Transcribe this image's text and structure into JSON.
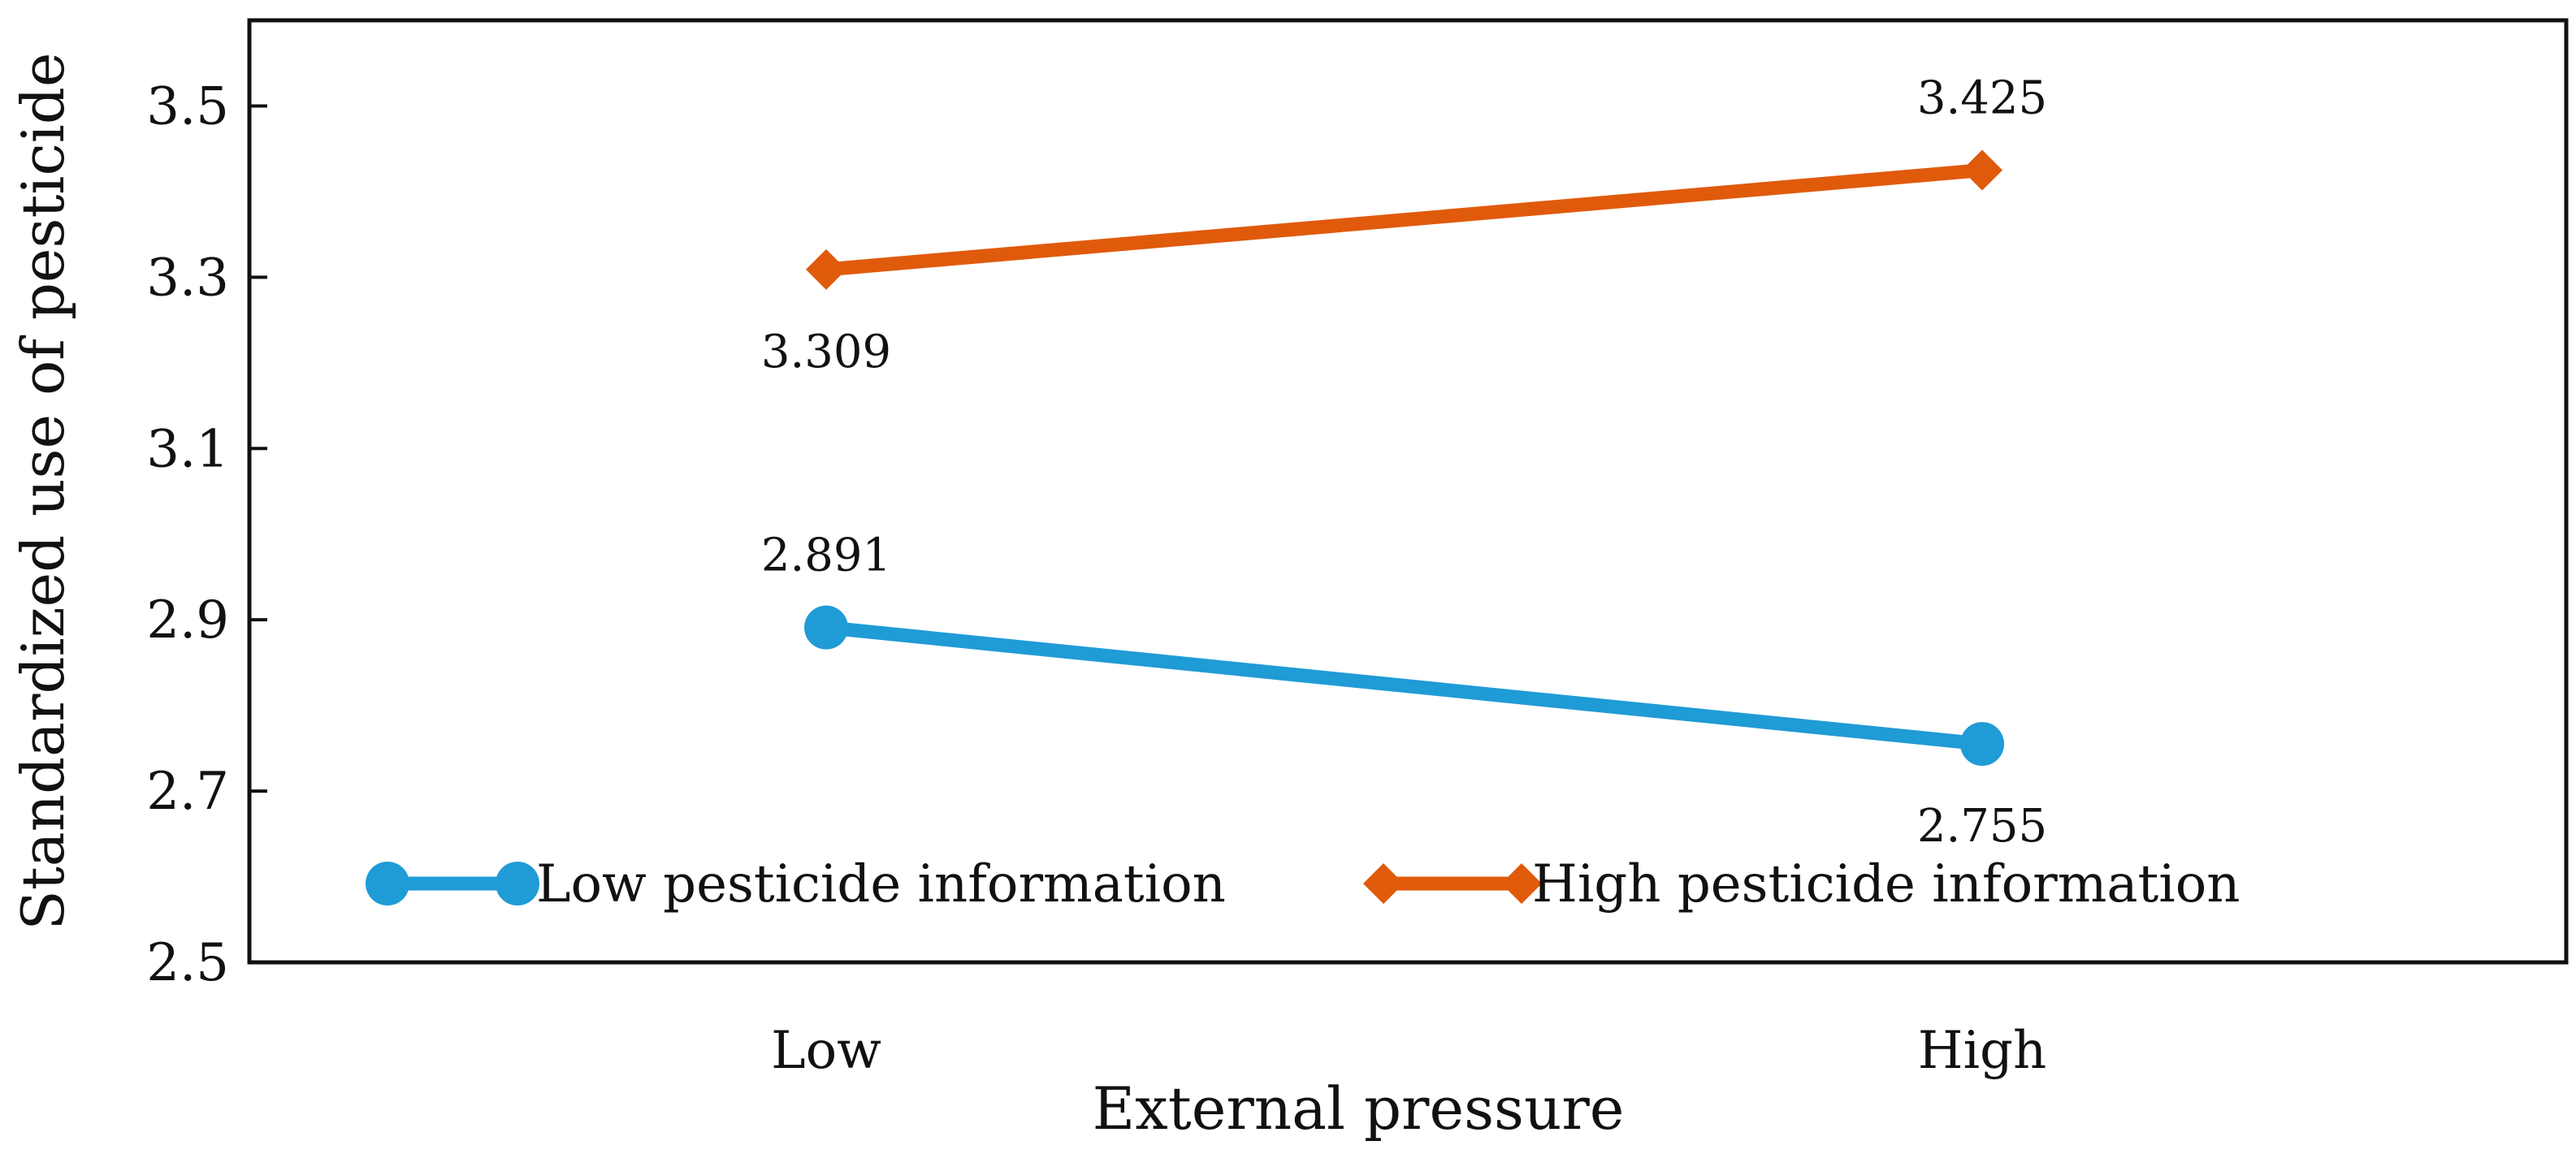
{
  "chart_data": {
    "type": "line",
    "title": "",
    "xlabel": "External pressure",
    "ylabel": "Standardized use of pesticide",
    "categories": [
      "Low",
      "High"
    ],
    "ylim": [
      2.5,
      3.6
    ],
    "yticks": [
      2.5,
      2.7,
      2.9,
      3.1,
      3.3,
      3.5
    ],
    "ytick_labels": [
      "2.5",
      "2.7",
      "2.9",
      "3.1",
      "3.3",
      "3.5"
    ],
    "grid": false,
    "legend_position": "bottom-left, horizontal, inside plot",
    "series": [
      {
        "name": "Low pesticide information",
        "values": [
          2.891,
          2.755
        ],
        "labels": [
          "2.891",
          "2.755"
        ],
        "label_position": [
          "above",
          "below"
        ],
        "marker": "circle",
        "color": "#1f9bd6"
      },
      {
        "name": "High pesticide information",
        "values": [
          3.309,
          3.425
        ],
        "labels": [
          "3.309",
          "3.425"
        ],
        "label_position": [
          "below",
          "above"
        ],
        "marker": "diamond",
        "color": "#e05a0c"
      }
    ]
  }
}
